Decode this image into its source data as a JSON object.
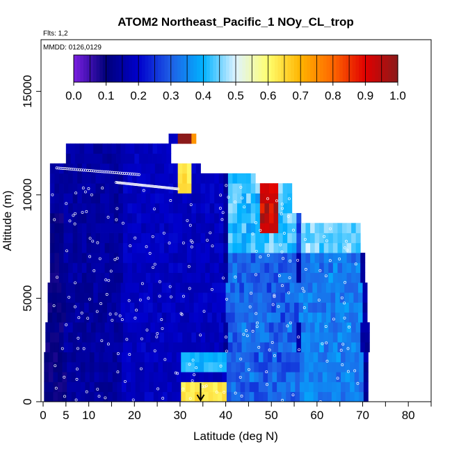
{
  "chart_data": {
    "type": "heatmap",
    "title": "ATOM2 Northeast_Pacific_1 NOy_CL_trop",
    "info_lines": [
      "Flts: 1,2",
      "MMDD: 0126,0129"
    ],
    "xlabel": "Latitude (deg N)",
    "ylabel": "Altitude (m)",
    "xlim": [
      0,
      85
    ],
    "ylim": [
      0,
      17500
    ],
    "x_tick_labels": [
      0,
      5,
      10,
      20,
      30,
      40,
      50,
      60,
      70,
      80
    ],
    "x_minor_ticks": [
      15,
      25,
      35,
      45,
      55,
      65,
      75,
      85
    ],
    "y_tick_labels": [
      0,
      5000,
      10000,
      15000
    ],
    "colorbar": {
      "tick_labels": [
        "0.0",
        "0.1",
        "0.2",
        "0.3",
        "0.4",
        "0.5",
        "0.6",
        "0.7",
        "0.8",
        "0.9",
        "1.0"
      ],
      "range": [
        0,
        1
      ],
      "colors": [
        "#7b1fe0",
        "#00007a",
        "#0000cc",
        "#1f5fe6",
        "#00b2ff",
        "#dff3ff",
        "#ffff6e",
        "#ffb400",
        "#ff6600",
        "#e00000",
        "#8b1a1a"
      ]
    },
    "marker": {
      "latitude": 34.5,
      "altitude": 500,
      "symbol": "arrow-down"
    },
    "grid": false,
    "legend": "none"
  }
}
